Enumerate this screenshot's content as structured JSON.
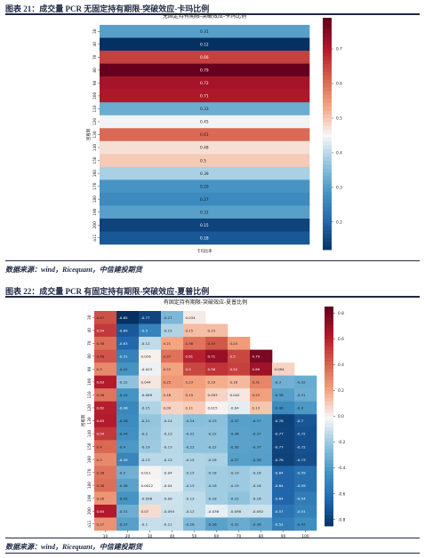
{
  "figure1": {
    "title": "图表 21：成交量 PCR 无固定持有期限-突破效应-卡玛比例",
    "source": "数据来源：wind，Ricequant，中信建投期货"
  },
  "figure2": {
    "title": "图表 22：成交量 PCR 有固定持有期限-突破效应-夏普比例",
    "source": "数据来源：wind，Ricequant，中信建投期货"
  },
  "chart_data": [
    {
      "type": "heatmap",
      "title": "无固定持有期限-突破效应-卡玛比例",
      "xlabel": "卡玛比率",
      "ylabel": "回看期",
      "x_tick_labels": [],
      "y": [
        "30",
        "40",
        "70",
        "80",
        "90",
        "100",
        "110",
        "120",
        "130",
        "140",
        "150",
        "160",
        "170",
        "180",
        "190",
        "200",
        "a11"
      ],
      "values": [
        [
          0.31
        ],
        [
          0.12
        ],
        [
          0.66
        ],
        [
          0.79
        ],
        [
          0.72
        ],
        [
          0.71
        ],
        [
          0.33
        ],
        [
          0.45
        ],
        [
          0.61
        ],
        [
          0.48
        ],
        [
          0.5
        ],
        [
          0.39
        ],
        [
          0.29
        ],
        [
          0.27
        ],
        [
          0.31
        ],
        [
          0.15
        ],
        [
          0.18
        ]
      ],
      "value_labels": [
        [
          "0.31"
        ],
        [
          "0.12"
        ],
        [
          "0.66"
        ],
        [
          "0.79"
        ],
        [
          "0.72"
        ],
        [
          "0.71"
        ],
        [
          "0.33"
        ],
        [
          "0.45"
        ],
        [
          "0.61"
        ],
        [
          "0.48"
        ],
        [
          "0.5"
        ],
        [
          "0.39"
        ],
        [
          "0.29"
        ],
        [
          "0.27"
        ],
        [
          "0.31"
        ],
        [
          "0.15"
        ],
        [
          "0.18"
        ]
      ],
      "colorbar": {
        "range": [
          0.12,
          0.79
        ],
        "ticks": [
          "0.7",
          "0.6",
          "0.5",
          "0.4",
          "0.3",
          "0.2"
        ],
        "tick_values": [
          0.7,
          0.6,
          0.5,
          0.4,
          0.3,
          0.2
        ]
      },
      "colormap": "RdBu_r"
    },
    {
      "type": "heatmap",
      "title": "有固定持有期限-突破效应-夏普比例",
      "xlabel": "",
      "ylabel": "回看期",
      "x": [
        "10",
        "20",
        "30",
        "40",
        "50",
        "60",
        "70",
        "80",
        "90",
        "100"
      ],
      "y": [
        "30",
        "40",
        "70",
        "80",
        "90",
        "100",
        "110",
        "120",
        "130",
        "140",
        "150",
        "160",
        "170",
        "180",
        "190",
        "200",
        "a11"
      ],
      "values": [
        [
          0.47,
          -0.85,
          -0.77,
          -0.27,
          0.034,
          null,
          null,
          null,
          null,
          null
        ],
        [
          0.54,
          -0.69,
          -0.5,
          -0.15,
          0.15,
          0.15,
          null,
          null,
          null,
          null
        ],
        [
          0.38,
          -0.63,
          -0.12,
          0.21,
          0.36,
          0.45,
          0.24,
          null,
          null,
          null
        ],
        [
          0.46,
          -0.51,
          0.016,
          0.37,
          0.61,
          0.71,
          0.5,
          0.79,
          null,
          null
        ],
        [
          0.3,
          -0.42,
          -0.023,
          0.22,
          0.5,
          0.56,
          0.52,
          0.69,
          0.094,
          null
        ],
        [
          0.63,
          -0.22,
          0.044,
          0.25,
          0.23,
          0.19,
          0.16,
          0.31,
          -0.3,
          -0.32
        ],
        [
          0.36,
          -0.42,
          -0.089,
          0.16,
          0.19,
          0.093,
          0.042,
          0.23,
          -0.38,
          -0.31
        ],
        [
          0.62,
          -0.48,
          -0.15,
          0.09,
          0.11,
          0.015,
          -0.04,
          0.13,
          -0.46,
          -0.4
        ],
        [
          0.63,
          -0.46,
          -0.21,
          -0.14,
          -0.24,
          -0.23,
          -0.37,
          -0.37,
          -0.78,
          -0.7
        ],
        [
          0.54,
          -0.44,
          -0.2,
          -0.13,
          -0.22,
          -0.22,
          -0.36,
          -0.37,
          -0.77,
          -0.72
        ],
        [
          0.4,
          -0.4,
          -0.19,
          -0.13,
          -0.22,
          -0.22,
          -0.36,
          -0.37,
          -0.77,
          -0.72
        ],
        [
          0.3,
          -0.49,
          -0.13,
          -0.13,
          -0.15,
          -0.16,
          -0.37,
          -0.38,
          -0.78,
          -0.73
        ],
        [
          0.36,
          -0.3,
          0.011,
          -0.04,
          -0.15,
          -0.18,
          -0.19,
          -0.16,
          -0.64,
          -0.59
        ],
        [
          0.38,
          -0.36,
          0.0012,
          -0.04,
          -0.15,
          -0.18,
          -0.19,
          -0.16,
          -0.64,
          -0.59
        ],
        [
          0.26,
          -0.42,
          -0.096,
          -0.09,
          -0.12,
          -0.18,
          -0.22,
          -0.16,
          -0.64,
          -0.54
        ],
        [
          0.64,
          -0.31,
          0.07,
          -0.094,
          -0.12,
          -0.036,
          -0.098,
          -0.092,
          -0.57,
          -0.51
        ],
        [
          0.27,
          -0.37,
          -0.1,
          -0.11,
          -0.26,
          -0.36,
          -0.32,
          -0.36,
          -0.52,
          -0.45
        ]
      ],
      "value_labels": [
        [
          "0.47",
          "-0.85",
          "-0.77",
          "-0.27",
          "0.034",
          "",
          "",
          "",
          "",
          ""
        ],
        [
          "0.54",
          "-0.69",
          "-0.5",
          "-0.15",
          "0.15",
          "0.15",
          "",
          "",
          "",
          ""
        ],
        [
          "0.38",
          "-0.63",
          "-0.12",
          "0.21",
          "0.36",
          "0.45",
          "0.24",
          "",
          "",
          ""
        ],
        [
          "0.46",
          "-0.51",
          "0.016",
          "0.37",
          "0.61",
          "0.71",
          "0.5",
          "0.79",
          "",
          ""
        ],
        [
          "0.3",
          "-0.42",
          "-0.023",
          "0.22",
          "0.5",
          "0.56",
          "0.52",
          "0.69",
          "0.094",
          ""
        ],
        [
          "0.63",
          "-0.22",
          "0.044",
          "0.25",
          "0.23",
          "0.19",
          "0.16",
          "0.31",
          "-0.3",
          "-0.32"
        ],
        [
          "0.36",
          "-0.42",
          "-0.089",
          "0.16",
          "0.19",
          "0.093",
          "0.042",
          "0.23",
          "-0.38",
          "-0.31"
        ],
        [
          "0.62",
          "-0.48",
          "-0.15",
          "0.09",
          "0.11",
          "0.015",
          "-0.04",
          "0.13",
          "-0.46",
          "-0.4"
        ],
        [
          "0.63",
          "-0.46",
          "-0.21",
          "-0.14",
          "-0.24",
          "-0.23",
          "-0.37",
          "-0.37",
          "-0.78",
          "-0.7"
        ],
        [
          "0.54",
          "-0.44",
          "-0.2",
          "-0.13",
          "-0.22",
          "-0.22",
          "-0.36",
          "-0.37",
          "-0.77",
          "-0.72"
        ],
        [
          "0.4",
          "-0.4",
          "-0.19",
          "-0.13",
          "-0.22",
          "-0.22",
          "-0.36",
          "-0.37",
          "-0.77",
          "-0.72"
        ],
        [
          "0.3",
          "-0.49",
          "-0.13",
          "-0.13",
          "-0.15",
          "-0.16",
          "-0.37",
          "-0.38",
          "-0.78",
          "-0.73"
        ],
        [
          "0.36",
          "-0.3",
          "0.011",
          "-0.04",
          "-0.15",
          "-0.18",
          "-0.19",
          "-0.16",
          "-0.64",
          "-0.59"
        ],
        [
          "0.38",
          "-0.36",
          "0.0012",
          "-0.04",
          "-0.15",
          "-0.18",
          "-0.19",
          "-0.16",
          "-0.64",
          "-0.59"
        ],
        [
          "0.26",
          "-0.42",
          "-0.096",
          "-0.09",
          "-0.12",
          "-0.18",
          "-0.22",
          "-0.16",
          "-0.64",
          "-0.54"
        ],
        [
          "0.64",
          "-0.31",
          "0.07",
          "-0.094",
          "-0.12",
          "-0.036",
          "-0.098",
          "-0.092",
          "-0.57",
          "-0.51"
        ],
        [
          "0.27",
          "-0.37",
          "-0.1",
          "-0.11",
          "-0.26",
          "-0.36",
          "-0.32",
          "-0.36",
          "-0.52",
          "-0.45"
        ]
      ],
      "colorbar": {
        "range": [
          -0.85,
          0.85
        ],
        "ticks": [
          "0.8",
          "0.6",
          "0.4",
          "0.2",
          "0.0",
          "-0.2",
          "-0.4",
          "-0.6",
          "-0.8"
        ],
        "tick_values": [
          0.8,
          0.6,
          0.4,
          0.2,
          0.0,
          -0.2,
          -0.4,
          -0.6,
          -0.8
        ]
      },
      "colormap": "RdBu_r"
    }
  ]
}
